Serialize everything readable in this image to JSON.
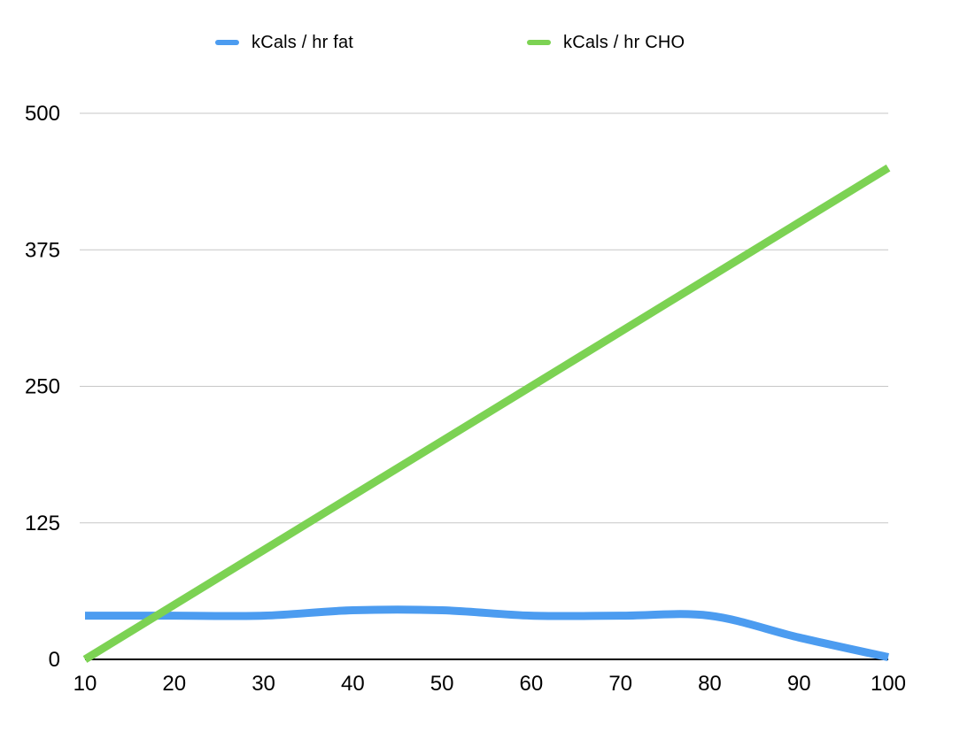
{
  "legend": {
    "items": [
      {
        "label": "kCals / hr fat",
        "color": "#4C9CF0"
      },
      {
        "label": "kCals / hr CHO",
        "color": "#7CD253"
      }
    ],
    "position": "top"
  },
  "chart_data": {
    "type": "line",
    "x": [
      10,
      20,
      30,
      40,
      50,
      60,
      70,
      80,
      90,
      100
    ],
    "series": [
      {
        "name": "kCals / hr fat",
        "color": "#4C9CF0",
        "smooth": true,
        "values": [
          40,
          40,
          40,
          45,
          45,
          40,
          40,
          40,
          20,
          2
        ]
      },
      {
        "name": "kCals / hr CHO",
        "color": "#7CD253",
        "smooth": true,
        "values": [
          0,
          50,
          100,
          150,
          200,
          250,
          300,
          350,
          400,
          450
        ]
      }
    ],
    "x_ticks": [
      "10",
      "20",
      "30",
      "40",
      "50",
      "60",
      "70",
      "80",
      "90",
      "100"
    ],
    "y_ticks": [
      "0",
      "125",
      "250",
      "375",
      "500"
    ],
    "xlim": [
      10,
      100
    ],
    "ylim": [
      0,
      500
    ],
    "grid": true,
    "legend_position": "top",
    "colors": {
      "gridline": "#C7C7C7",
      "axis": "#000000",
      "tick_text": "#000000"
    }
  }
}
